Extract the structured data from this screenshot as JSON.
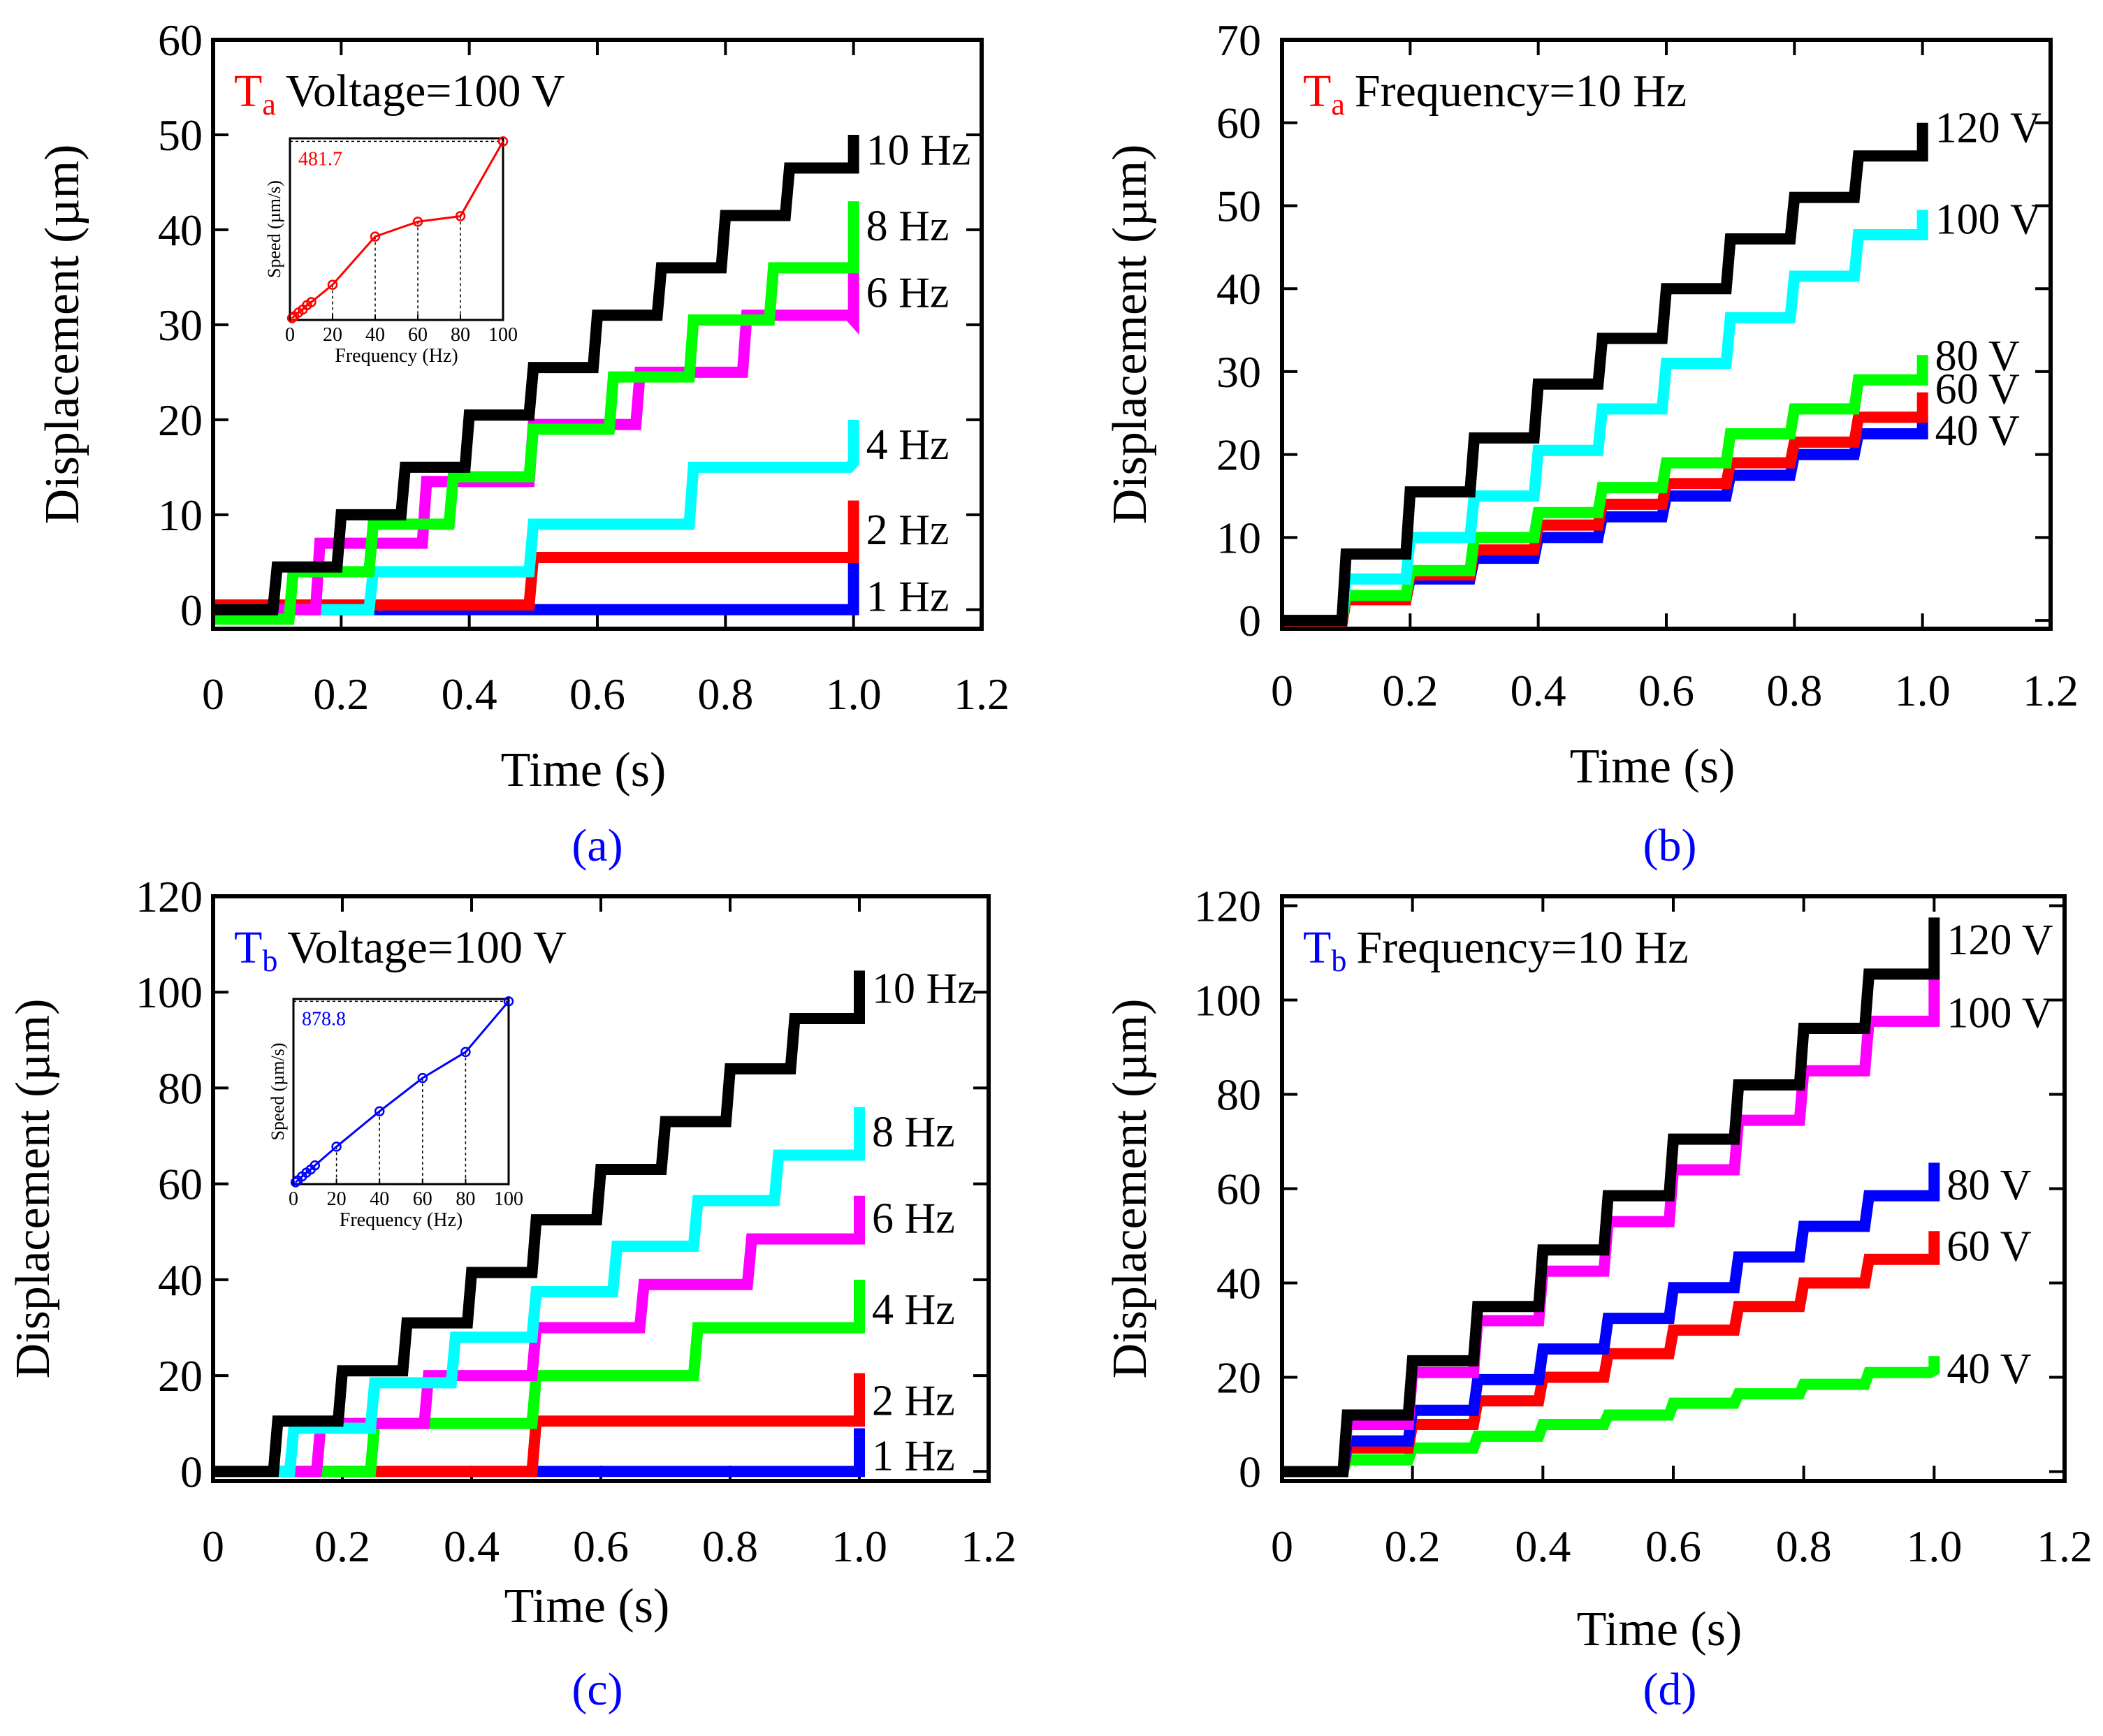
{
  "colors": {
    "black": "#000000",
    "red": "#ff0000",
    "blue": "#0000ff",
    "green": "#00ff00",
    "cyan": "#00ffff",
    "magenta": "#ff00ff",
    "caption": "#0000ff"
  },
  "chart_data": [
    {
      "id": "a",
      "type": "line",
      "caption": "(a)",
      "title_tag": "T",
      "title_sub": "a",
      "title_tag_color": "red",
      "title_text": "Voltage=100 V",
      "xlabel": "Time (s)",
      "ylabel": "Displacement (µm)",
      "xlim": [
        0,
        1.2
      ],
      "ylim": [
        -2,
        60
      ],
      "xticks": [
        0,
        0.2,
        0.4,
        0.6,
        0.8,
        1.0,
        1.2
      ],
      "xtick_labels": [
        "0",
        "0.2",
        "0.4",
        "0.6",
        "0.8",
        "1.0",
        "1.2"
      ],
      "yticks": [
        0,
        10,
        20,
        30,
        40,
        50,
        60
      ],
      "ytick_labels": [
        "0",
        "10",
        "20",
        "30",
        "40",
        "50",
        "60"
      ],
      "series": [
        {
          "name": "1 Hz",
          "label": "1 Hz",
          "color": "blue",
          "start": 0.0,
          "step_time": 0.5,
          "t0": 1.0,
          "x": [
            0,
            1.0
          ],
          "y": [
            0,
            0
          ],
          "label_y": 1.5,
          "end_jump": 5
        },
        {
          "name": "2 Hz",
          "label": "2 Hz",
          "color": "red",
          "start": 0.0,
          "step_time": 0.5,
          "t0": 0.5,
          "x": [
            0,
            0.5,
            1.0
          ],
          "y": [
            0.5,
            5.5,
            5.5
          ],
          "label_y": 8.5,
          "end_jump": 6
        },
        {
          "name": "4 Hz",
          "label": "4 Hz",
          "color": "cyan",
          "start": 0.0,
          "step_time": 0.25,
          "t0": 0.25,
          "x": [
            0,
            0.25,
            0.5,
            0.75,
            1.0
          ],
          "y": [
            0,
            4,
            9,
            15,
            15.5
          ],
          "label_y": 17.5,
          "end_jump": 4.5
        },
        {
          "name": "6 Hz",
          "label": "6 Hz",
          "color": "magenta",
          "start": 0.0,
          "step_time": 0.1667,
          "t0": 0.1667,
          "x": [
            0,
            0.1667,
            0.3333,
            0.5,
            0.6667,
            0.8333,
            1.0
          ],
          "y": [
            0,
            7,
            13.5,
            19.5,
            25,
            31,
            30.5
          ],
          "label_y": 33.5,
          "end_jump": 5
        },
        {
          "name": "8 Hz",
          "label": "8 Hz",
          "color": "green",
          "start": 0.0,
          "step_time": 0.125,
          "t0": 0.125,
          "x": [
            0,
            0.125,
            0.25,
            0.375,
            0.5,
            0.625,
            0.75,
            0.875,
            1.0
          ],
          "y": [
            -1,
            4,
            9,
            14,
            19,
            24.5,
            30.5,
            36,
            36
          ],
          "label_y": 40.5,
          "end_jump": 7
        },
        {
          "name": "10 Hz",
          "label": "10 Hz",
          "color": "black",
          "start": 0.0,
          "step_time": 0.1,
          "t0": 0.1,
          "x": [
            0,
            0.1,
            0.2,
            0.3,
            0.4,
            0.5,
            0.6,
            0.7,
            0.8,
            0.9,
            1.0
          ],
          "y": [
            0,
            4.5,
            10,
            15,
            20.5,
            25.5,
            31,
            36,
            41.5,
            46.5,
            46.5
          ],
          "label_y": 48.5,
          "end_jump": 3.5
        }
      ],
      "inset": {
        "color": "red",
        "xlabel": "Frequency (Hz)",
        "ylabel": "Speed (µm/s)",
        "annotation": "481.7",
        "xlim": [
          0,
          100
        ],
        "ylim": [
          0,
          490
        ],
        "xticks": [
          0,
          20,
          40,
          60,
          80,
          100
        ],
        "xtick_labels": [
          "0",
          "20",
          "40",
          "60",
          "80",
          "100"
        ],
        "x": [
          1,
          2,
          4,
          6,
          8,
          10,
          20,
          40,
          60,
          80,
          100
        ],
        "y": [
          5,
          10,
          20,
          28,
          40,
          48,
          95,
          225,
          265,
          280,
          481.7
        ]
      }
    },
    {
      "id": "b",
      "type": "line",
      "caption": "(b)",
      "title_tag": "T",
      "title_sub": "a",
      "title_tag_color": "red",
      "title_text": "Frequency=10 Hz",
      "xlabel": "Time (s)",
      "ylabel": "Displacement (µm)",
      "xlim": [
        0,
        1.2
      ],
      "ylim": [
        -1,
        70
      ],
      "xticks": [
        0,
        0.2,
        0.4,
        0.6,
        0.8,
        1.0,
        1.2
      ],
      "xtick_labels": [
        "0",
        "0.2",
        "0.4",
        "0.6",
        "0.8",
        "1.0",
        "1.2"
      ],
      "yticks": [
        0,
        10,
        20,
        30,
        40,
        50,
        60,
        70
      ],
      "ytick_labels": [
        "0",
        "10",
        "20",
        "30",
        "40",
        "50",
        "60",
        "70"
      ],
      "series": [
        {
          "name": "40 V",
          "label": "40 V",
          "color": "blue",
          "step_time": 0.1,
          "t0": 0.1,
          "x": [
            0,
            0.1,
            0.2,
            0.3,
            0.4,
            0.5,
            0.6,
            0.7,
            0.8,
            0.9,
            1.0
          ],
          "y": [
            0,
            2.5,
            5,
            7.5,
            10,
            12.5,
            15,
            17.5,
            20,
            22.5,
            22.5
          ],
          "label_y": 23,
          "end_jump": 2
        },
        {
          "name": "60 V",
          "label": "60 V",
          "color": "red",
          "step_time": 0.1,
          "t0": 0.1,
          "x": [
            0,
            0.1,
            0.2,
            0.3,
            0.4,
            0.5,
            0.6,
            0.7,
            0.8,
            0.9,
            1.0
          ],
          "y": [
            -0.5,
            2.5,
            5.5,
            8.5,
            11.5,
            14,
            16.5,
            19,
            21.5,
            24.5,
            24.5
          ],
          "label_y": 28,
          "end_jump": 3
        },
        {
          "name": "80 V",
          "label": "80 V",
          "color": "green",
          "step_time": 0.1,
          "t0": 0.1,
          "x": [
            0,
            0.1,
            0.2,
            0.3,
            0.4,
            0.5,
            0.6,
            0.7,
            0.8,
            0.9,
            1.0
          ],
          "y": [
            0,
            3,
            6,
            10,
            13,
            16,
            19,
            22.5,
            25.5,
            29,
            29
          ],
          "label_y": 32,
          "end_jump": 3
        },
        {
          "name": "100 V",
          "label": "100 V",
          "color": "cyan",
          "step_time": 0.1,
          "t0": 0.1,
          "x": [
            0,
            0.1,
            0.2,
            0.3,
            0.4,
            0.5,
            0.6,
            0.7,
            0.8,
            0.9,
            1.0
          ],
          "y": [
            0,
            5,
            10,
            15,
            20.5,
            25.5,
            31,
            36.5,
            41.5,
            46.5,
            46.5
          ],
          "label_y": 48.5,
          "end_jump": 3
        },
        {
          "name": "120 V",
          "label": "120 V",
          "color": "black",
          "step_time": 0.1,
          "t0": 0.1,
          "x": [
            0,
            0.1,
            0.2,
            0.3,
            0.4,
            0.5,
            0.6,
            0.7,
            0.8,
            0.9,
            1.0
          ],
          "y": [
            0,
            8,
            15.5,
            22,
            28.5,
            34,
            40,
            46,
            51,
            56,
            56
          ],
          "label_y": 59.5,
          "end_jump": 4
        }
      ]
    },
    {
      "id": "c",
      "type": "line",
      "caption": "(c)",
      "title_tag": "T",
      "title_sub": "b",
      "title_tag_color": "blue",
      "title_text": "Voltage=100 V",
      "xlabel": "Time (s)",
      "ylabel": "Displacement (µm)",
      "xlim": [
        0,
        1.2
      ],
      "ylim": [
        -2,
        120
      ],
      "xticks": [
        0,
        0.2,
        0.4,
        0.6,
        0.8,
        1.0,
        1.2
      ],
      "xtick_labels": [
        "0",
        "0.2",
        "0.4",
        "0.6",
        "0.8",
        "1.0",
        "1.2"
      ],
      "yticks": [
        0,
        20,
        40,
        60,
        80,
        100,
        120
      ],
      "ytick_labels": [
        "0",
        "20",
        "40",
        "60",
        "80",
        "100",
        "120"
      ],
      "series": [
        {
          "name": "1 Hz",
          "label": "1 Hz",
          "color": "blue",
          "step_time": 1.0,
          "t0": 1.0,
          "x": [
            0,
            1.0
          ],
          "y": [
            0,
            0
          ],
          "label_y": 3.5,
          "end_jump": 9
        },
        {
          "name": "2 Hz",
          "label": "2 Hz",
          "color": "red",
          "step_time": 0.5,
          "t0": 0.5,
          "x": [
            0,
            0.5,
            1.0
          ],
          "y": [
            0,
            10.5,
            10.5
          ],
          "label_y": 15,
          "end_jump": 10
        },
        {
          "name": "4 Hz",
          "label": "4 Hz",
          "color": "green",
          "step_time": 0.25,
          "t0": 0.25,
          "x": [
            0,
            0.25,
            0.5,
            0.75,
            1.0
          ],
          "y": [
            0,
            10,
            20,
            30,
            30
          ],
          "label_y": 34,
          "end_jump": 10
        },
        {
          "name": "6 Hz",
          "label": "6 Hz",
          "color": "magenta",
          "step_time": 0.1667,
          "t0": 0.1667,
          "x": [
            0,
            0.1667,
            0.3333,
            0.5,
            0.6667,
            0.8333,
            1.0
          ],
          "y": [
            0,
            10,
            20,
            30,
            39,
            48.5,
            48.5
          ],
          "label_y": 53,
          "end_jump": 9
        },
        {
          "name": "8 Hz",
          "label": "8 Hz",
          "color": "cyan",
          "step_time": 0.125,
          "t0": 0.125,
          "x": [
            0,
            0.125,
            0.25,
            0.375,
            0.5,
            0.625,
            0.75,
            0.875,
            1.0
          ],
          "y": [
            0,
            9,
            18.5,
            28,
            37.5,
            47,
            56.5,
            66,
            66
          ],
          "label_y": 71,
          "end_jump": 10
        },
        {
          "name": "10 Hz",
          "label": "10 Hz",
          "color": "black",
          "step_time": 0.1,
          "t0": 0.1,
          "x": [
            0,
            0.1,
            0.2,
            0.3,
            0.4,
            0.5,
            0.6,
            0.7,
            0.8,
            0.9,
            1.0
          ],
          "y": [
            0,
            10.5,
            21,
            31,
            41.5,
            52.5,
            63,
            73,
            84,
            94.5,
            94.5
          ],
          "label_y": 101,
          "end_jump": 10
        }
      ],
      "inset": {
        "color": "blue",
        "xlabel": "Frequency (Hz)",
        "ylabel": "Speed (µm/s)",
        "annotation": "878.8",
        "xlim": [
          0,
          100
        ],
        "ylim": [
          0,
          890
        ],
        "xticks": [
          0,
          20,
          40,
          60,
          80,
          100
        ],
        "xtick_labels": [
          "0",
          "20",
          "40",
          "60",
          "80",
          "100"
        ],
        "x": [
          1,
          2,
          4,
          6,
          8,
          10,
          20,
          40,
          60,
          80,
          100
        ],
        "y": [
          9,
          18,
          37,
          55,
          70,
          90,
          180,
          350,
          510,
          635,
          878.8
        ]
      }
    },
    {
      "id": "d",
      "type": "line",
      "caption": "(d)",
      "title_tag": "T",
      "title_sub": "b",
      "title_tag_color": "blue",
      "title_text": "Frequency=10 Hz",
      "xlabel": "Time (s)",
      "ylabel": "Displacement (µm)",
      "xlim": [
        0,
        1.2
      ],
      "ylim": [
        -2,
        122
      ],
      "xticks": [
        0,
        0.2,
        0.4,
        0.6,
        0.8,
        1.0,
        1.2
      ],
      "xtick_labels": [
        "0",
        "0.2",
        "0.4",
        "0.6",
        "0.8",
        "1.0",
        "1.2"
      ],
      "yticks": [
        0,
        20,
        40,
        60,
        80,
        100,
        120
      ],
      "ytick_labels": [
        "0",
        "20",
        "40",
        "60",
        "80",
        "100",
        "120"
      ],
      "series": [
        {
          "name": "40 V",
          "label": "40 V",
          "color": "green",
          "step_time": 0.1,
          "t0": 0.1,
          "x": [
            0,
            0.1,
            0.2,
            0.3,
            0.4,
            0.5,
            0.6,
            0.7,
            0.8,
            0.9,
            1.0
          ],
          "y": [
            0,
            2.5,
            5,
            7.5,
            10,
            12,
            14.5,
            16.5,
            18.5,
            21,
            21.5
          ],
          "label_y": 22,
          "end_jump": 3
        },
        {
          "name": "60 V",
          "label": "60 V",
          "color": "red",
          "step_time": 0.1,
          "t0": 0.1,
          "x": [
            0,
            0.1,
            0.2,
            0.3,
            0.4,
            0.5,
            0.6,
            0.7,
            0.8,
            0.9,
            1.0
          ],
          "y": [
            0,
            5,
            10,
            15,
            20,
            25,
            30,
            35,
            40,
            45,
            45
          ],
          "label_y": 48,
          "end_jump": 6
        },
        {
          "name": "80 V",
          "label": "80 V",
          "color": "blue",
          "step_time": 0.1,
          "t0": 0.1,
          "x": [
            0,
            0.1,
            0.2,
            0.3,
            0.4,
            0.5,
            0.6,
            0.7,
            0.8,
            0.9,
            1.0
          ],
          "y": [
            0,
            6.5,
            13,
            19.5,
            26,
            32.5,
            39,
            45.5,
            52,
            58.5,
            58.5
          ],
          "label_y": 61,
          "end_jump": 7
        },
        {
          "name": "100 V",
          "label": "100 V",
          "color": "magenta",
          "step_time": 0.1,
          "t0": 0.1,
          "x": [
            0,
            0.1,
            0.2,
            0.3,
            0.4,
            0.5,
            0.6,
            0.7,
            0.8,
            0.9,
            1.0
          ],
          "y": [
            0,
            10,
            21,
            32,
            42.5,
            53,
            64,
            74.5,
            85,
            95.5,
            95.5
          ],
          "label_y": 97.5,
          "end_jump": 9
        },
        {
          "name": "120 V",
          "label": "120 V",
          "color": "black",
          "step_time": 0.1,
          "t0": 0.1,
          "x": [
            0,
            0.1,
            0.2,
            0.3,
            0.4,
            0.5,
            0.6,
            0.7,
            0.8,
            0.9,
            1.0
          ],
          "y": [
            0,
            12,
            23.5,
            35,
            47,
            58.5,
            70.5,
            82,
            94,
            105.5,
            105.5
          ],
          "label_y": 113,
          "end_jump": 12
        }
      ]
    }
  ]
}
